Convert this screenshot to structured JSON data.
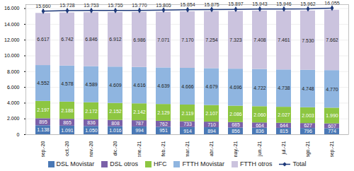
{
  "chart_data": {
    "type": "bar",
    "stacked": true,
    "data_labels": true,
    "categories": [
      "sep.-20",
      "oct.-20",
      "nov.-20",
      "dic.-20",
      "ene.-21",
      "feb.-21",
      "mar.-21",
      "abr.-21",
      "may.-21",
      "jun.-21",
      "jul.-21",
      "ago.-21",
      "sep.-21"
    ],
    "ylim": [
      0,
      16500
    ],
    "yticks": [
      0,
      {
        "value": 2000,
        "label": "2.000"
      },
      {
        "value": 4000,
        "label": "4.000"
      },
      {
        "value": 6000,
        "label": "6.000"
      },
      {
        "value": 8000,
        "label": "8.000"
      },
      {
        "value": 10000,
        "label": "10.000"
      },
      {
        "value": 12000,
        "label": "12.000"
      },
      {
        "value": 14000,
        "label": "14.000"
      },
      {
        "value": 16000,
        "label": "16.000"
      }
    ],
    "legend": "bottom",
    "series": [
      {
        "name": "DSL Movistar",
        "color": "#4a78b5",
        "values": [
          1138,
          1091,
          1050,
          1016,
          994,
          951,
          914,
          894,
          856,
          836,
          815,
          796,
          774
        ],
        "value_labels": [
          "1.138",
          "1.091",
          "1.050",
          "1.016",
          "994",
          "951",
          "914",
          "894",
          "856",
          "836",
          "815",
          "796",
          "774"
        ]
      },
      {
        "name": "DSL otros",
        "color": "#7b61a8",
        "values": [
          895,
          865,
          836,
          808,
          787,
          762,
          733,
          710,
          685,
          664,
          644,
          627,
          607
        ],
        "value_labels": [
          "895",
          "865",
          "836",
          "808",
          "787",
          "762",
          "733",
          "710",
          "685",
          "664",
          "644",
          "627",
          "607"
        ]
      },
      {
        "name": "HFC",
        "color": "#8dc641",
        "values": [
          2197,
          2188,
          2172,
          2152,
          2142,
          2129,
          2119,
          2107,
          2086,
          2060,
          2027,
          2003,
          1990
        ],
        "value_labels": [
          "2.197",
          "2.188",
          "2.172",
          "2.152",
          "2.142",
          "2.129",
          "2.119",
          "2.107",
          "2.086",
          "2.060",
          "2.027",
          "2.003",
          "1.990"
        ]
      },
      {
        "name": "FTTH Movistar",
        "color": "#8fb5e0",
        "values": [
          4552,
          4578,
          4589,
          4609,
          4616,
          4639,
          4666,
          4679,
          4696,
          4722,
          4738,
          4748,
          4770
        ],
        "value_labels": [
          "4.552",
          "4.578",
          "4.589",
          "4.609",
          "4.616",
          "4.639",
          "4.666",
          "4.679",
          "4.696",
          "4.722",
          "4.738",
          "4.748",
          "4.770"
        ]
      },
      {
        "name": "FTTH otros",
        "color": "#cbc3de",
        "values": [
          6617,
          6742,
          6846,
          6912,
          6986,
          7071,
          7170,
          7254,
          7323,
          7408,
          7461,
          7530,
          7662
        ],
        "value_labels": [
          "6.617",
          "6.742",
          "6.846",
          "6.912",
          "6.986",
          "7.071",
          "7.170",
          "7.254",
          "7.323",
          "7.408",
          "7.461",
          "7.530",
          "7.662"
        ]
      },
      {
        "name": "Total",
        "color": "#1f3a7a",
        "type": "line",
        "marker": "diamond",
        "values": [
          15660,
          15728,
          15753,
          15755,
          15770,
          15805,
          15854,
          15875,
          15897,
          15943,
          15946,
          15962,
          16055
        ],
        "value_labels": [
          "15.660",
          "15.728",
          "15.753",
          "15.755",
          "15.770",
          "15.805",
          "15.854",
          "15.875",
          "15.897",
          "15.943",
          "15.946",
          "15.962",
          "16.055"
        ]
      }
    ]
  }
}
